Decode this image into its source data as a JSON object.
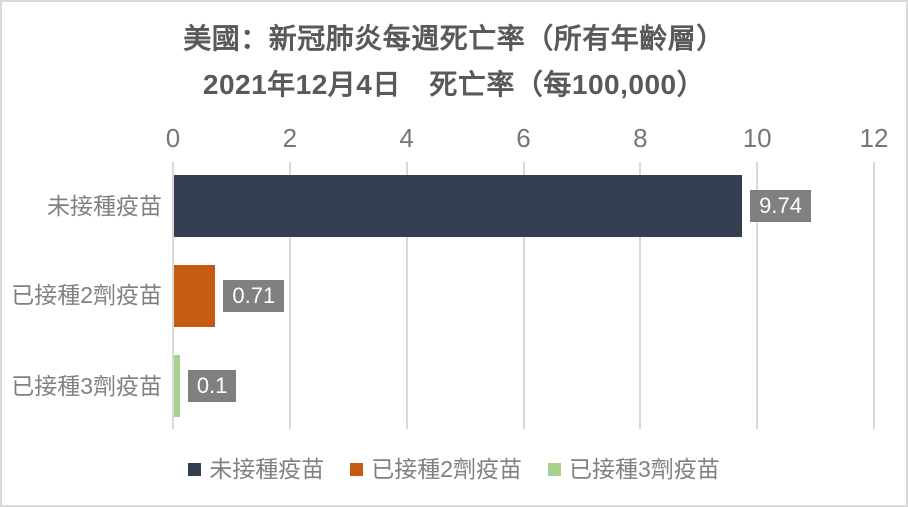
{
  "chart_data": {
    "type": "bar",
    "orientation": "horizontal",
    "title": "美國：新冠肺炎每週死亡率（所有年齡層）",
    "subtitle": "2021年12月4日　死亡率（每100,000）",
    "categories": [
      "未接種疫苗",
      "已接種2劑疫苗",
      "已接種3劑疫苗"
    ],
    "values": [
      9.74,
      0.71,
      0.1
    ],
    "value_labels": [
      "9.74",
      "0.71",
      "0.1"
    ],
    "bar_colors": [
      "#333F50",
      "#C55A11",
      "#A9D18E"
    ],
    "x_ticks": [
      "0",
      "2",
      "4",
      "6",
      "8",
      "10",
      "12"
    ],
    "xlim": [
      0,
      12
    ],
    "grid": true,
    "legend": {
      "position": "bottom",
      "entries": [
        {
          "label": "未接種疫苗",
          "color": "#333F50"
        },
        {
          "label": "已接種2劑疫苗",
          "color": "#C55A11"
        },
        {
          "label": "已接種3劑疫苗",
          "color": "#A9D18E"
        }
      ]
    },
    "colors": {
      "title_text": "#595959",
      "axis_text": "#767676",
      "category_text": "#808080",
      "legend_text": "#808080",
      "gridline": "#D9D9D9",
      "data_label_bg": "#808080",
      "data_label_text": "#FFFFFF",
      "border": "#D9D9D9",
      "background": "#FFFFFF"
    }
  }
}
